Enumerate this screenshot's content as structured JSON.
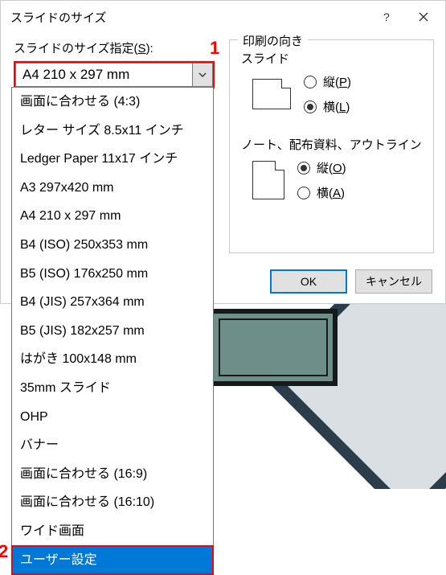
{
  "dialog": {
    "title": "スライドのサイズ",
    "size_label": "スライドのサイズ指定(S):",
    "size_label_accel": "S",
    "selected_size": "A4 210 x 297 mm",
    "marker1": "1",
    "marker2": "2",
    "options": [
      "画面に合わせる (4:3)",
      "レター サイズ 8.5x11 インチ",
      "Ledger Paper 11x17 インチ",
      "A3 297x420 mm",
      "A4 210 x 297 mm",
      "B4 (ISO) 250x353 mm",
      "B5 (ISO) 176x250 mm",
      "B4 (JIS) 257x364 mm",
      "B5 (JIS) 182x257 mm",
      "はがき 100x148 mm",
      "35mm スライド",
      "OHP",
      "バナー",
      "画面に合わせる (16:9)",
      "画面に合わせる (16:10)",
      "ワイド画面",
      "ユーザー設定"
    ],
    "selected_index": 16
  },
  "orientation": {
    "group_title": "印刷の向き",
    "slide_label": "スライド",
    "notes_label": "ノート、配布資料、アウトライン",
    "portrait": "縦(P)",
    "landscape": "横(L)",
    "portrait2": "縦(O)",
    "landscape2": "横(A)",
    "slide_selected": "landscape",
    "notes_selected": "portrait"
  },
  "buttons": {
    "ok": "OK",
    "cancel": "キャンセル"
  },
  "colors": {
    "marker": "#ff0000",
    "highlight_bg": "#0078d7",
    "highlight_fg": "#ffffff",
    "primary_border": "#0078d7",
    "bg_teal": "#6e8e8a",
    "bg_dark": "#2b3d4a"
  }
}
